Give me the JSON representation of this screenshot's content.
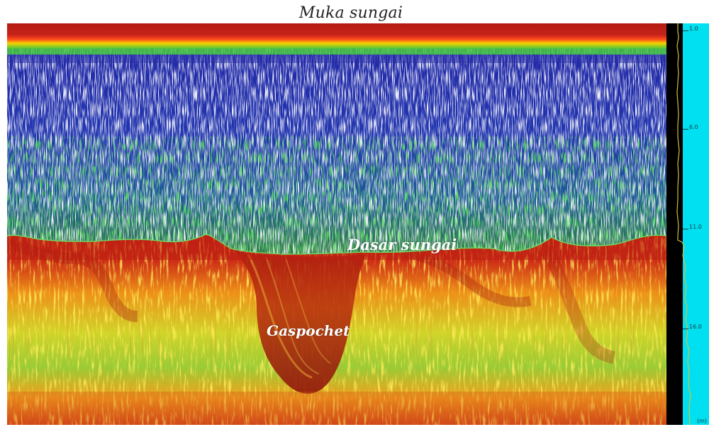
{
  "labels": {
    "surface": "Muka sungai",
    "riverbed": "Dasar sungai",
    "gas": "Gaspochet"
  },
  "depth_scale": {
    "unit": "(m)",
    "ticks": [
      "1.0",
      "6.0",
      "11.0",
      "16.0"
    ]
  }
}
